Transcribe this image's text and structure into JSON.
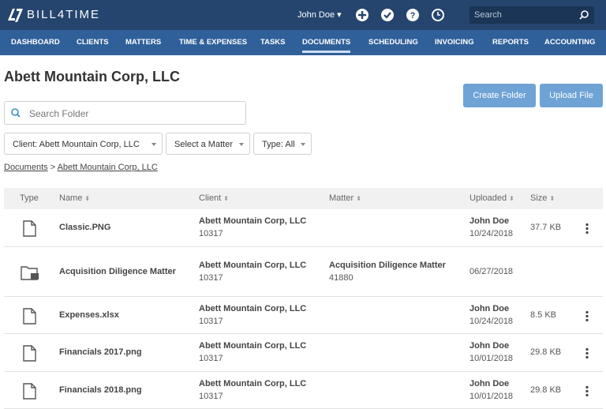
{
  "header": {
    "logo": "BILL4TIME",
    "user": "John Doe",
    "search_placeholder": "Search"
  },
  "nav": [
    {
      "label": "DASHBOARD"
    },
    {
      "label": "CLIENTS"
    },
    {
      "label": "MATTERS"
    },
    {
      "label": "TIME & EXPENSES"
    },
    {
      "label": "TASKS"
    },
    {
      "label": "DOCUMENTS",
      "active": true
    },
    {
      "label": "SCHEDULING"
    },
    {
      "label": "INVOICING"
    },
    {
      "label": "REPORTS"
    },
    {
      "label": "ACCOUNTING"
    }
  ],
  "page": {
    "title": "Abett Mountain Corp, LLC",
    "buttons": [
      "Create Folder",
      "Upload File"
    ],
    "search_placeholder": "Search Folder",
    "filters": [
      "Client: Abett Mountain Corp, LLC",
      "Select a Matter",
      "Type: All"
    ],
    "breadcrumb": [
      "Documents",
      "Abett Mountain Corp, LLC"
    ]
  },
  "table": {
    "columns": [
      "Type",
      "Name",
      "Client",
      "Matter",
      "Uploaded",
      "Size"
    ],
    "rows": [
      {
        "kind": "file",
        "name": "Classic.PNG",
        "client": "Abett Mountain Corp, LLC",
        "client_id": "10317",
        "uploaded_by": "John Doe",
        "uploaded_date": "10/24/2018",
        "size": "37.7 KB"
      },
      {
        "kind": "folder",
        "name": "Acquisition Diligence Matter",
        "client": "Abett Mountain Corp, LLC",
        "client_id": "10317",
        "matter": "Acquisition Diligence Matter",
        "matter_id": "41880",
        "uploaded_date": "06/27/2018"
      },
      {
        "kind": "file",
        "name": "Expenses.xlsx",
        "client": "Abett Mountain Corp, LLC",
        "client_id": "10317",
        "uploaded_by": "John Doe",
        "uploaded_date": "10/24/2018",
        "size": "8.5 KB"
      },
      {
        "kind": "file",
        "name": "Financials 2017.png",
        "client": "Abett Mountain Corp, LLC",
        "client_id": "10317",
        "uploaded_by": "John Doe",
        "uploaded_date": "10/01/2018",
        "size": "29.8 KB"
      },
      {
        "kind": "file",
        "name": "Financials 2018.png",
        "client": "Abett Mountain Corp, LLC",
        "client_id": "10317",
        "uploaded_by": "John Doe",
        "uploaded_date": "10/01/2018",
        "size": "29.8 KB"
      }
    ]
  }
}
